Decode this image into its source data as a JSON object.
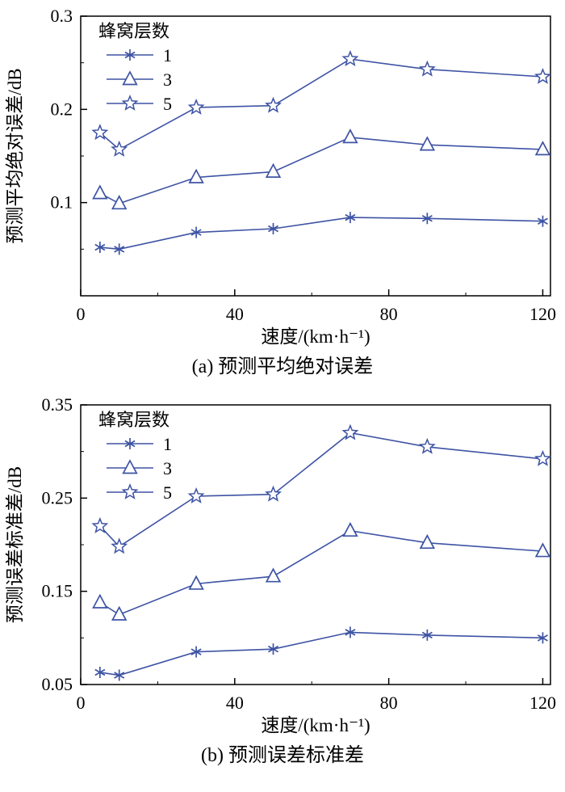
{
  "style": {
    "line_color": "#3E53A4",
    "axis_color": "#000000",
    "text_color": "#000000",
    "background": "#ffffff"
  },
  "chart_data": [
    {
      "type": "line",
      "x": [
        5,
        10,
        30,
        50,
        70,
        90,
        120
      ],
      "series": [
        {
          "name": "1",
          "marker": "asterisk",
          "values": [
            0.052,
            0.05,
            0.068,
            0.072,
            0.084,
            0.083,
            0.08
          ]
        },
        {
          "name": "3",
          "marker": "triangle",
          "values": [
            0.11,
            0.099,
            0.127,
            0.133,
            0.17,
            0.162,
            0.157
          ]
        },
        {
          "name": "5",
          "marker": "star",
          "values": [
            0.175,
            0.157,
            0.202,
            0.204,
            0.254,
            0.243,
            0.235
          ]
        }
      ],
      "title": "",
      "xlabel": "速度/(km·h⁻¹)",
      "ylabel": "预测平均绝对误差/dB",
      "xlim": [
        0,
        122
      ],
      "ylim": [
        0,
        0.3
      ],
      "xticks": [
        0,
        40,
        80,
        120
      ],
      "xtick_labels": [
        "0",
        "40",
        "80",
        "120"
      ],
      "yticks": [
        0.1,
        0.2,
        0.3
      ],
      "ytick_labels": [
        "0.1",
        "0.2",
        "0.3"
      ],
      "minor_xticks": [
        20,
        60,
        100
      ],
      "minor_yticks": [
        0.05,
        0.15,
        0.25
      ],
      "grid": false,
      "legend_title": "蜂窝层数",
      "legend_position": "top-left",
      "caption": "(a) 预测平均绝对误差"
    },
    {
      "type": "line",
      "x": [
        5,
        10,
        30,
        50,
        70,
        90,
        120
      ],
      "series": [
        {
          "name": "1",
          "marker": "asterisk",
          "values": [
            0.063,
            0.06,
            0.085,
            0.088,
            0.106,
            0.103,
            0.1
          ]
        },
        {
          "name": "3",
          "marker": "triangle",
          "values": [
            0.138,
            0.125,
            0.158,
            0.166,
            0.215,
            0.202,
            0.193
          ]
        },
        {
          "name": "5",
          "marker": "star",
          "values": [
            0.22,
            0.198,
            0.252,
            0.254,
            0.32,
            0.305,
            0.292
          ]
        }
      ],
      "title": "",
      "xlabel": "速度/(km·h⁻¹)",
      "ylabel": "预测误差标准差/dB",
      "xlim": [
        0,
        122
      ],
      "ylim": [
        0.05,
        0.35
      ],
      "xticks": [
        0,
        40,
        80,
        120
      ],
      "xtick_labels": [
        "0",
        "40",
        "80",
        "120"
      ],
      "yticks": [
        0.05,
        0.15,
        0.25,
        0.35
      ],
      "ytick_labels": [
        "0.05",
        "0.15",
        "0.25",
        "0.35"
      ],
      "minor_xticks": [
        20,
        60,
        100
      ],
      "minor_yticks": [
        0.1,
        0.2,
        0.3
      ],
      "grid": false,
      "legend_title": "蜂窝层数",
      "legend_position": "top-left",
      "caption": "(b) 预测误差标准差"
    }
  ]
}
